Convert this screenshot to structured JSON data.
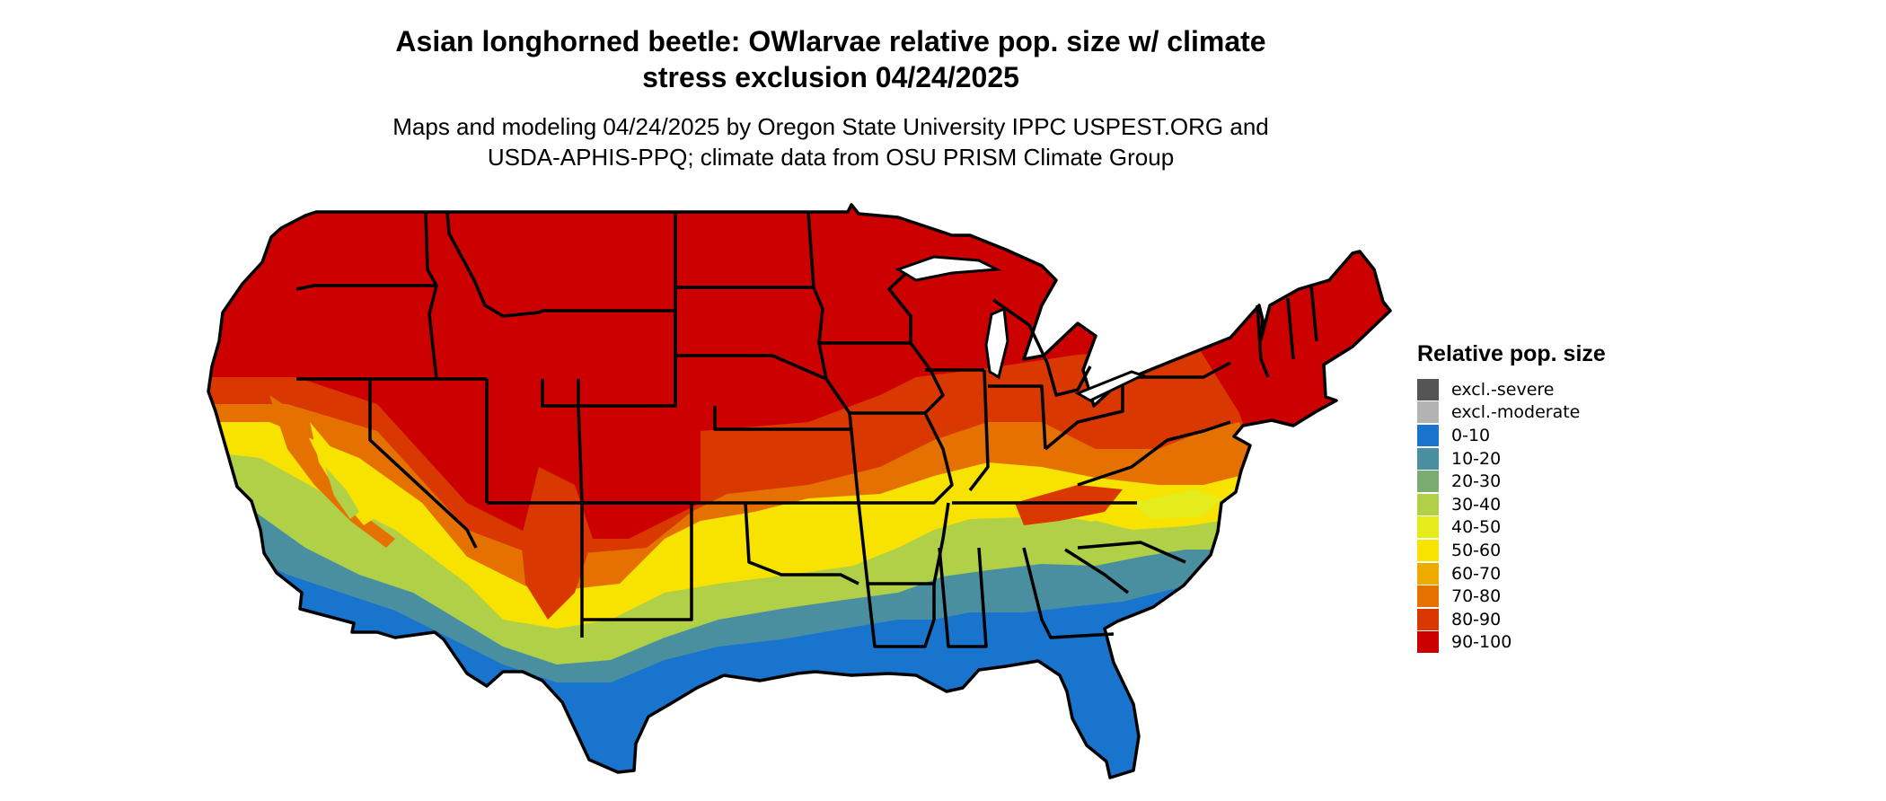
{
  "title": {
    "line1": "Asian longhorned beetle: OWlarvae relative pop. size w/ climate",
    "line2": "stress exclusion 04/24/2025"
  },
  "subtitle": {
    "line1": "Maps and modeling 04/24/2025 by Oregon State University IPPC USPEST.ORG and",
    "line2": "USDA-APHIS-PPQ; climate data from OSU PRISM Climate Group"
  },
  "legend": {
    "title": "Relative pop. size",
    "items": [
      {
        "label": "excl.-severe",
        "color": "#555555"
      },
      {
        "label": "excl.-moderate",
        "color": "#b3b3b3"
      },
      {
        "label": "0-10",
        "color": "#1874cd"
      },
      {
        "label": "10-20",
        "color": "#4a8fa0"
      },
      {
        "label": "20-30",
        "color": "#7aac72"
      },
      {
        "label": "30-40",
        "color": "#b0d048"
      },
      {
        "label": "40-50",
        "color": "#e4ec1c"
      },
      {
        "label": "50-60",
        "color": "#f7e200"
      },
      {
        "label": "60-70",
        "color": "#eeaa00"
      },
      {
        "label": "70-80",
        "color": "#e57200"
      },
      {
        "label": "80-90",
        "color": "#d93800"
      },
      {
        "label": "90-100",
        "color": "#cd0000"
      }
    ]
  },
  "map": {
    "region": "Contiguous United States",
    "colors": {
      "c90": "#cd0000",
      "c80": "#d93800",
      "c70": "#e57200",
      "c50": "#f7e200",
      "c40": "#e4ec1c",
      "c30": "#b0d048",
      "c20": "#7aac72",
      "c10": "#4a8fa0",
      "c0": "#1874cd"
    }
  }
}
